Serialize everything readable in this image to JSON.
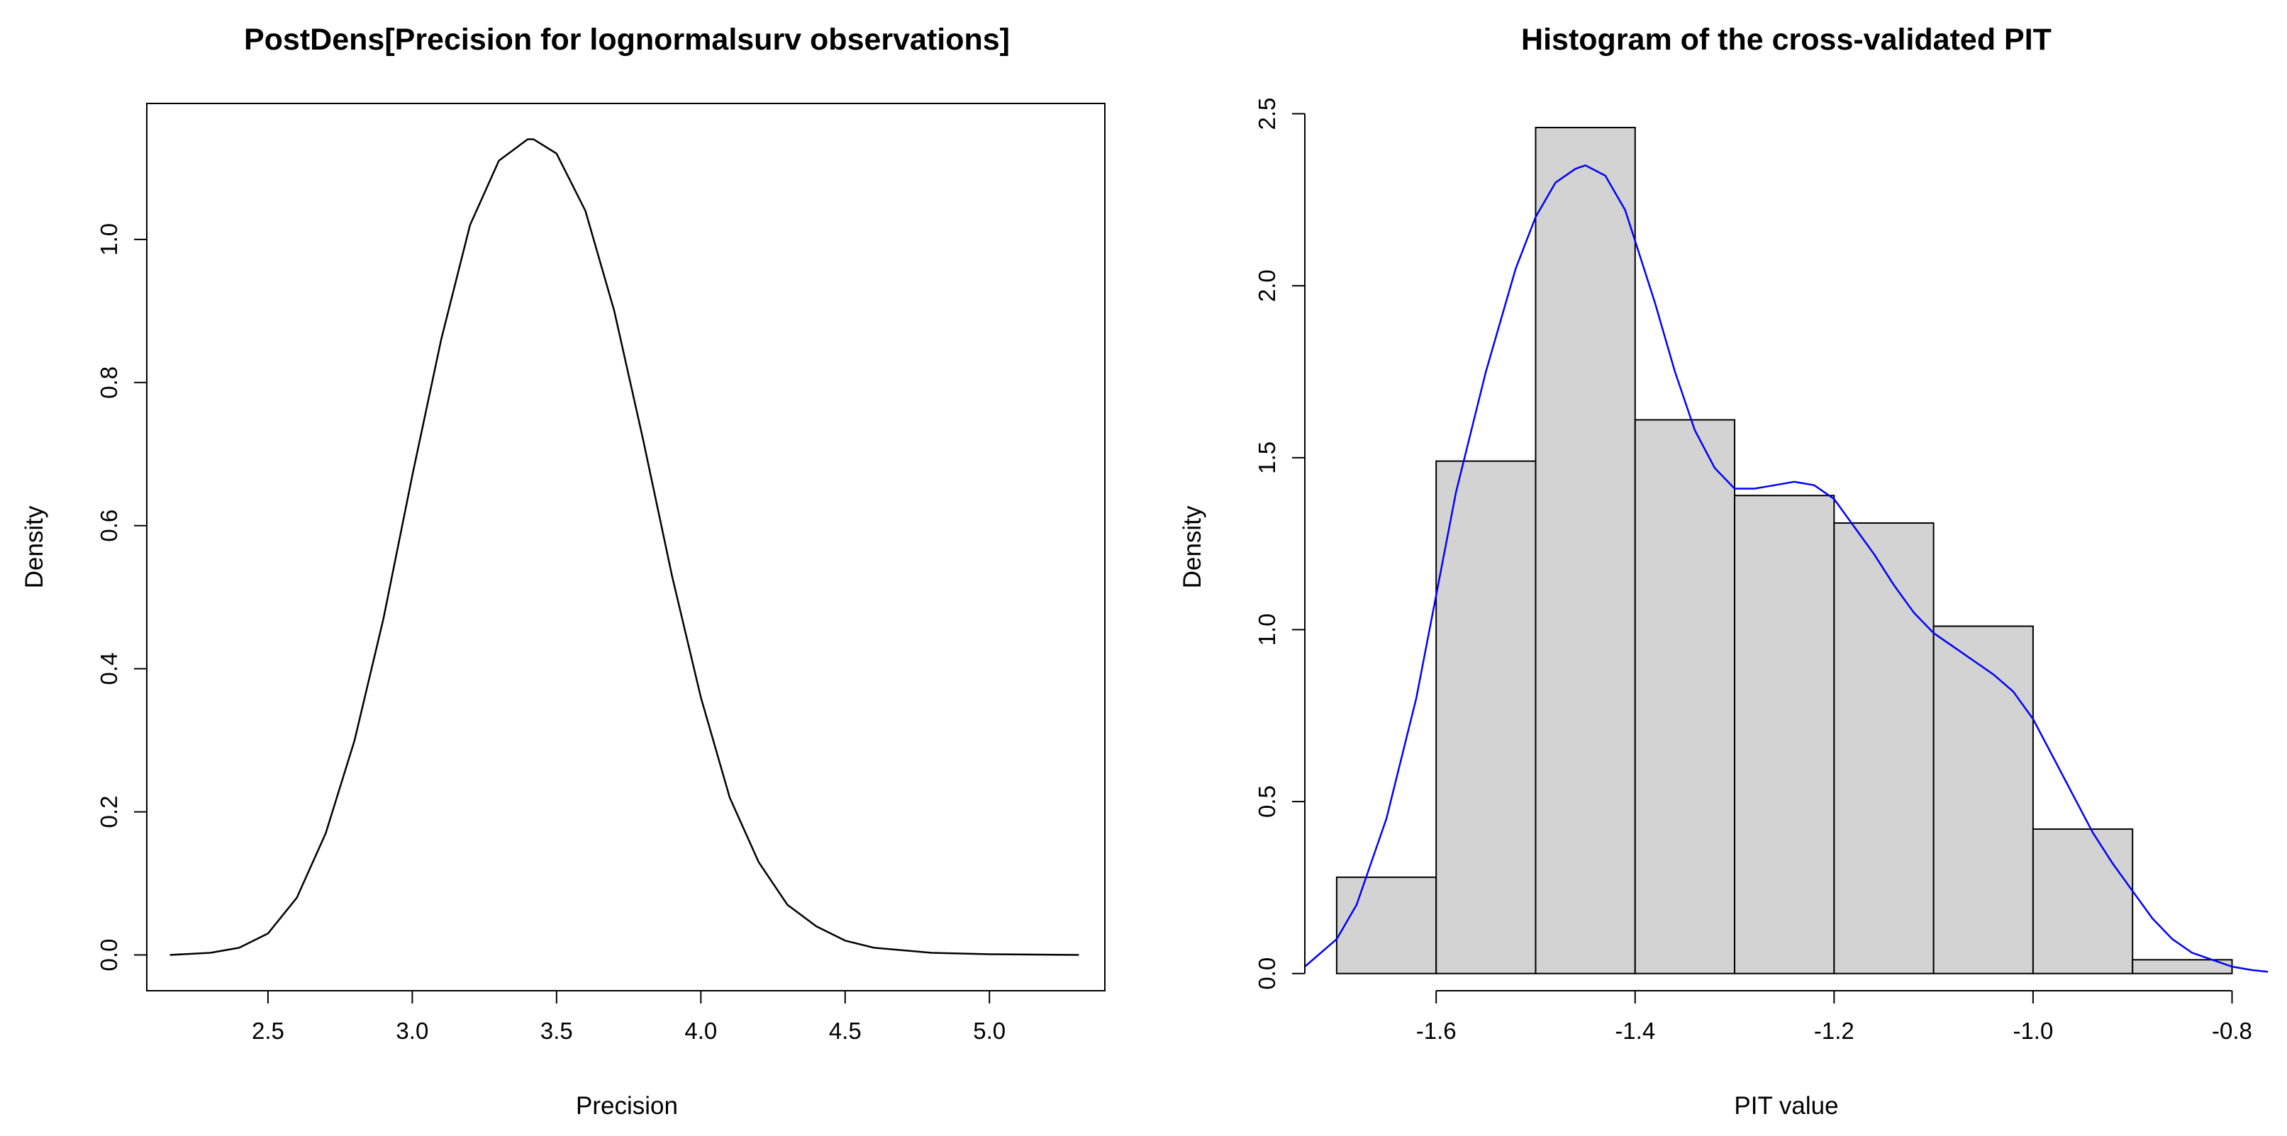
{
  "colors": {
    "background": "#ffffff",
    "density_line": "#000000",
    "bar_fill": "#d3d3d3",
    "bar_stroke": "#000000",
    "kde_line": "#0000ff"
  },
  "chart_data": [
    {
      "type": "line",
      "title": "PostDens[Precision for lognormalsurv observations]",
      "xlabel": "Precision",
      "ylabel": "Density",
      "xlim": [
        2.08,
        5.4
      ],
      "ylim": [
        -0.05,
        1.19
      ],
      "x_ticks": [
        2.5,
        3.0,
        3.5,
        4.0,
        4.5,
        5.0
      ],
      "x_tick_labels": [
        "2.5",
        "3.0",
        "3.5",
        "4.0",
        "4.5",
        "5.0"
      ],
      "y_ticks": [
        0.0,
        0.2,
        0.4,
        0.6,
        0.8,
        1.0
      ],
      "y_tick_labels": [
        "0.0",
        "0.2",
        "0.4",
        "0.6",
        "0.8",
        "1.0"
      ],
      "series": [
        {
          "x": [
            2.16,
            2.3,
            2.4,
            2.5,
            2.6,
            2.7,
            2.8,
            2.9,
            3.0,
            3.1,
            3.2,
            3.3,
            3.4,
            3.42,
            3.5,
            3.6,
            3.7,
            3.8,
            3.9,
            4.0,
            4.1,
            4.2,
            4.3,
            4.4,
            4.5,
            4.6,
            4.8,
            5.0,
            5.31
          ],
          "y": [
            0.0,
            0.003,
            0.01,
            0.03,
            0.08,
            0.17,
            0.3,
            0.47,
            0.67,
            0.86,
            1.02,
            1.11,
            1.14,
            1.14,
            1.12,
            1.04,
            0.9,
            0.72,
            0.53,
            0.36,
            0.22,
            0.13,
            0.07,
            0.04,
            0.02,
            0.01,
            0.003,
            0.001,
            0.0
          ]
        }
      ]
    },
    {
      "type": "bar",
      "title": "Histogram of the cross-validated PIT",
      "xlabel": "PIT value",
      "ylabel": "Density",
      "xlim": [
        -1.732,
        -0.764
      ],
      "ylim": [
        -0.05,
        2.53
      ],
      "x_ticks": [
        -1.6,
        -1.4,
        -1.2,
        -1.0,
        -0.8
      ],
      "x_tick_labels": [
        "-1.6",
        "-1.4",
        "-1.2",
        "-1.0",
        "-0.8"
      ],
      "y_ticks": [
        0.0,
        0.5,
        1.0,
        1.5,
        2.0,
        2.5
      ],
      "y_tick_labels": [
        "0.0",
        "0.5",
        "1.0",
        "1.5",
        "2.0",
        "2.5"
      ],
      "bins": [
        {
          "from": -1.7,
          "to": -1.6,
          "value": 0.28
        },
        {
          "from": -1.6,
          "to": -1.5,
          "value": 1.49
        },
        {
          "from": -1.5,
          "to": -1.4,
          "value": 2.46
        },
        {
          "from": -1.4,
          "to": -1.3,
          "value": 1.61
        },
        {
          "from": -1.3,
          "to": -1.2,
          "value": 1.39
        },
        {
          "from": -1.2,
          "to": -1.1,
          "value": 1.31
        },
        {
          "from": -1.1,
          "to": -1.0,
          "value": 1.01
        },
        {
          "from": -1.0,
          "to": -0.9,
          "value": 0.42
        },
        {
          "from": -0.9,
          "to": -0.8,
          "value": 0.04
        }
      ],
      "series": [
        {
          "x": [
            -1.732,
            -1.7,
            -1.68,
            -1.65,
            -1.62,
            -1.6,
            -1.58,
            -1.55,
            -1.52,
            -1.5,
            -1.48,
            -1.46,
            -1.45,
            -1.43,
            -1.41,
            -1.4,
            -1.38,
            -1.36,
            -1.34,
            -1.32,
            -1.3,
            -1.28,
            -1.26,
            -1.24,
            -1.22,
            -1.2,
            -1.18,
            -1.16,
            -1.14,
            -1.12,
            -1.1,
            -1.08,
            -1.06,
            -1.04,
            -1.02,
            -1.0,
            -0.98,
            -0.96,
            -0.94,
            -0.92,
            -0.9,
            -0.88,
            -0.86,
            -0.84,
            -0.82,
            -0.8,
            -0.78,
            -0.764
          ],
          "y": [
            0.02,
            0.1,
            0.2,
            0.45,
            0.8,
            1.1,
            1.4,
            1.75,
            2.05,
            2.2,
            2.3,
            2.34,
            2.35,
            2.32,
            2.22,
            2.13,
            1.95,
            1.75,
            1.58,
            1.47,
            1.41,
            1.41,
            1.42,
            1.43,
            1.42,
            1.38,
            1.3,
            1.22,
            1.13,
            1.05,
            0.99,
            0.95,
            0.91,
            0.87,
            0.82,
            0.74,
            0.63,
            0.52,
            0.41,
            0.32,
            0.24,
            0.16,
            0.1,
            0.06,
            0.04,
            0.02,
            0.01,
            0.005
          ]
        }
      ]
    }
  ]
}
